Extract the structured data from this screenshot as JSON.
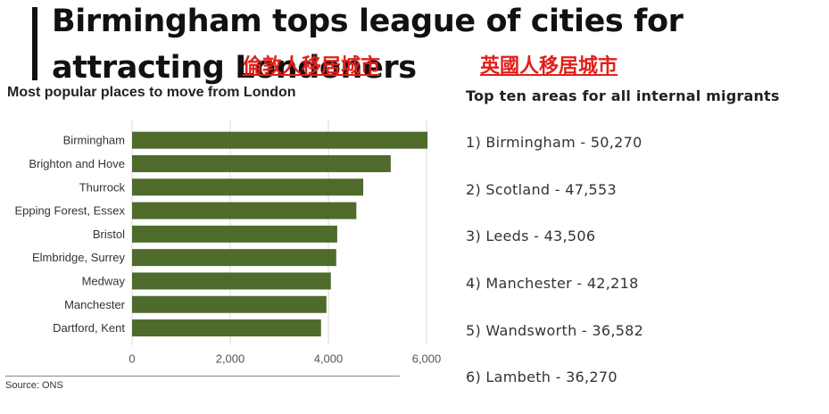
{
  "headline": "Birmingham tops league of cities for attracting Londoners",
  "tags": {
    "left": "倫敦人移居城市",
    "right": "英國人移居城市"
  },
  "chart_data": {
    "type": "bar",
    "orientation": "horizontal",
    "title": "Most popular places to move from London",
    "categories": [
      "Birmingham",
      "Brighton and Hove",
      "Thurrock",
      "Epping Forest, Essex",
      "Bristol",
      "Elmbridge, Surrey",
      "Medway",
      "Manchester",
      "Dartford, Kent"
    ],
    "values": [
      6020,
      5270,
      4710,
      4570,
      4180,
      4160,
      4050,
      3960,
      3850
    ],
    "xlim": [
      0,
      6000
    ],
    "xticks": [
      0,
      2000,
      4000,
      6000
    ],
    "xtick_labels": [
      "0",
      "2,000",
      "4,000",
      "6,000"
    ],
    "grid": true,
    "bar_color": "#4e6b2b",
    "source": "Source: ONS"
  },
  "right_panel": {
    "title": "Top ten areas for all internal migrants",
    "items": [
      "1) Birmingham - 50,270",
      "2) Scotland - 47,553",
      "3) Leeds - 43,506",
      "4) Manchester - 42,218",
      "5) Wandsworth - 36,582",
      "6) Lambeth - 36,270"
    ]
  }
}
